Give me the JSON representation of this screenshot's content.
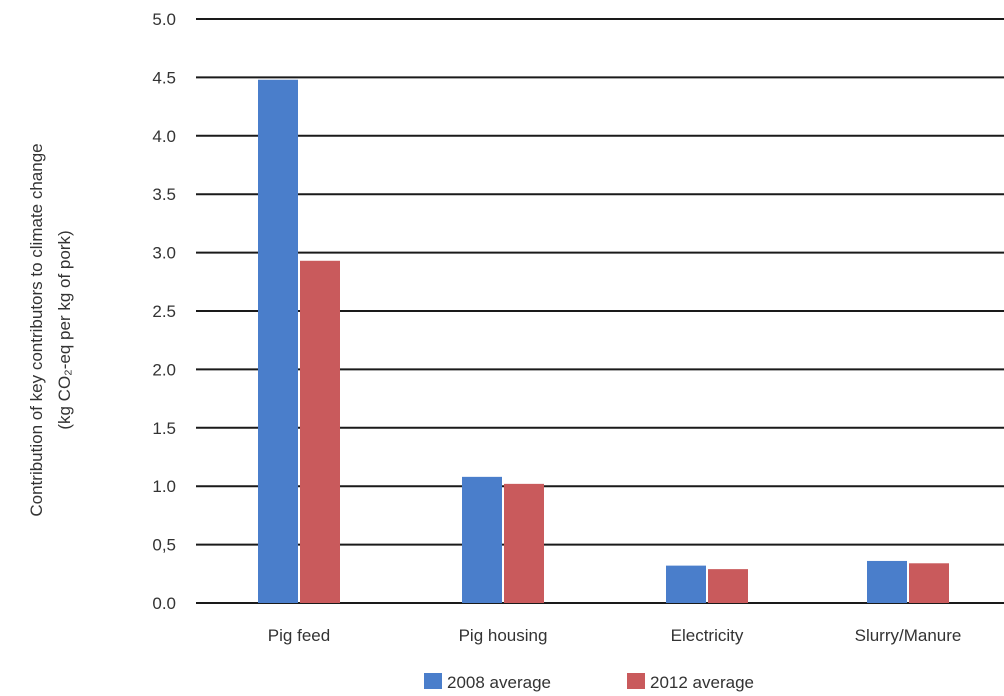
{
  "chart_data": {
    "type": "bar",
    "title": "",
    "xlabel": "",
    "ylabel": "Contribution of key contributors to climate change",
    "ylabel_line2": "(kg CO₂-eq per kg of pork)",
    "categories": [
      "Pig feed",
      "Pig housing",
      "Electricity",
      "Slurry/Manure"
    ],
    "series": [
      {
        "name": "2008 average",
        "color": "#4a7ecb",
        "values": [
          4.48,
          1.08,
          0.32,
          0.36
        ]
      },
      {
        "name": "2012 average",
        "color": "#c95a5c",
        "values": [
          2.93,
          1.02,
          0.29,
          0.34
        ]
      }
    ],
    "ylim": [
      0,
      5
    ],
    "yticks": [
      "0.0",
      "0,5",
      "1.0",
      "1.5",
      "2.0",
      "2.5",
      "3.0",
      "3.5",
      "4.0",
      "4.5",
      "5.0"
    ],
    "grid": true,
    "legend_position": "bottom"
  }
}
